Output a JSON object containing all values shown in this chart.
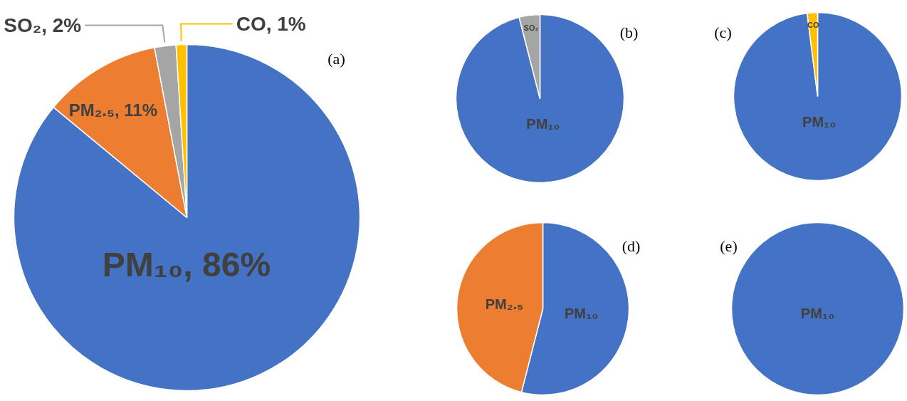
{
  "chart_data": [
    {
      "type": "pie",
      "title": "(a)",
      "categories": [
        "PM₁₀",
        "PM₂.₅",
        "SO₂",
        "CO"
      ],
      "values": [
        86,
        11,
        2,
        1
      ],
      "colors": [
        "#4472c4",
        "#ed7d31",
        "#a5a5a5",
        "#ffc000"
      ],
      "value_labels": [
        "86%",
        "11%",
        "2%",
        "1%"
      ]
    },
    {
      "type": "pie",
      "title": "(b)",
      "categories": [
        "PM₁₀",
        "SO₂"
      ],
      "values": [
        96,
        4
      ],
      "colors": [
        "#4472c4",
        "#a5a5a5"
      ]
    },
    {
      "type": "pie",
      "title": "(c)",
      "categories": [
        "PM₁₀",
        "CO"
      ],
      "values": [
        98,
        2
      ],
      "colors": [
        "#4472c4",
        "#ffc000"
      ]
    },
    {
      "type": "pie",
      "title": "(d)",
      "categories": [
        "PM₁₀",
        "PM₂.₅"
      ],
      "values": [
        54,
        46
      ],
      "colors": [
        "#4472c4",
        "#ed7d31"
      ]
    },
    {
      "type": "pie",
      "title": "(e)",
      "categories": [
        "PM₁₀"
      ],
      "values": [
        100
      ],
      "colors": [
        "#4472c4"
      ]
    }
  ]
}
